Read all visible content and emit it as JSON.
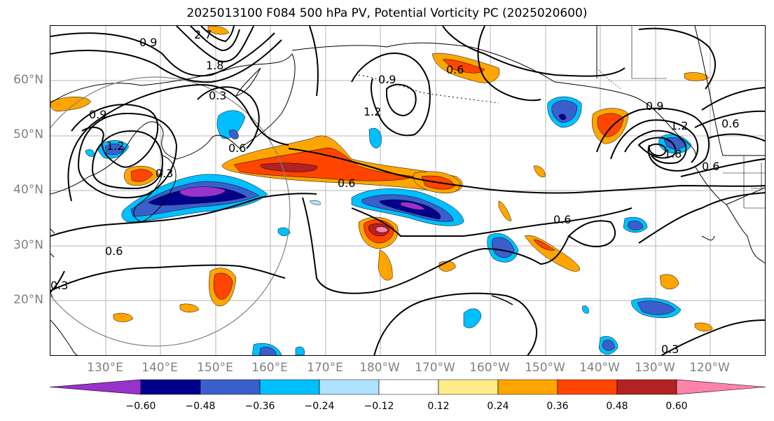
{
  "title": "2025013100 F084 500 hPa PV, Potential Vorticity PC (2025020600)",
  "lat_labels": [
    "60°N",
    "50°N",
    "40°N",
    "30°N",
    "20°N"
  ],
  "lon_labels": [
    "130°E",
    "140°E",
    "150°E",
    "160°E",
    "170°E",
    "180°W",
    "170°W",
    "160°W",
    "150°W",
    "140°W",
    "130°W",
    "120°W"
  ],
  "colorbar": {
    "ticks": [
      "−0.60",
      "−0.48",
      "−0.36",
      "−0.24",
      "−0.12",
      "0.12",
      "0.24",
      "0.36",
      "0.48",
      "0.60"
    ],
    "colors": [
      "#9932cc",
      "#00008b",
      "#3a5fcd",
      "#00bfff",
      "#b0e2ff",
      "#ffffff",
      "#ffec8b",
      "#ffa500",
      "#ff4500",
      "#b22222",
      "#ff82ab"
    ]
  },
  "contour_labels": [
    "0.9",
    "2.7",
    "1.8",
    "0.3",
    "0.9",
    "1.2",
    "0.9",
    "0.6",
    "0.6",
    "0.6",
    "1.2",
    "0.6",
    "0.3",
    "0.6",
    "0.6",
    "0.3",
    "1.8",
    "1.2",
    "0.6",
    "0.3",
    "0.9"
  ]
}
